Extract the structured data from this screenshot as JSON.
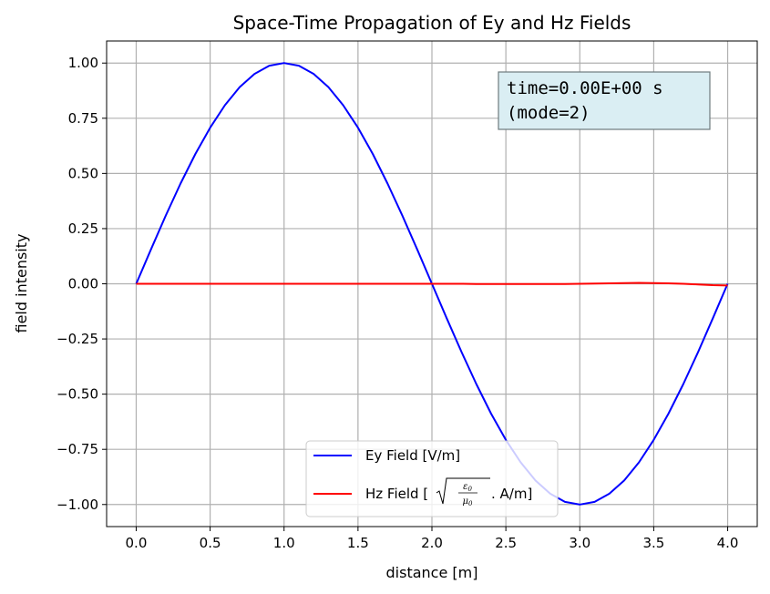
{
  "chart_data": {
    "type": "line",
    "title": "Space-Time Propagation of Ey and Hz Fields",
    "xlabel": "distance [m]",
    "ylabel": "field intensity",
    "xlim": [
      -0.2,
      4.2
    ],
    "ylim": [
      -1.1,
      1.1
    ],
    "xticks": [
      0.0,
      0.5,
      1.0,
      1.5,
      2.0,
      2.5,
      3.0,
      3.5,
      4.0
    ],
    "xtick_labels": [
      "0.0",
      "0.5",
      "1.0",
      "1.5",
      "2.0",
      "2.5",
      "3.0",
      "3.5",
      "4.0"
    ],
    "yticks": [
      1.0,
      0.75,
      0.5,
      0.25,
      0.0,
      -0.25,
      -0.5,
      -0.75,
      -1.0
    ],
    "ytick_labels": [
      "1.00",
      "0.75",
      "0.50",
      "0.25",
      "0.00",
      "−0.25",
      "−0.50",
      "−0.75",
      "−1.00"
    ],
    "grid": true,
    "legend_position": "bottom-center",
    "x": [
      0.0,
      0.1,
      0.2,
      0.3,
      0.4,
      0.5,
      0.6,
      0.7,
      0.8,
      0.9,
      1.0,
      1.1,
      1.2,
      1.3,
      1.4,
      1.5,
      1.6,
      1.7,
      1.8,
      1.9,
      2.0,
      2.1,
      2.2,
      2.3,
      2.4,
      2.5,
      2.6,
      2.7,
      2.8,
      2.9,
      3.0,
      3.1,
      3.2,
      3.3,
      3.4,
      3.5,
      3.6,
      3.7,
      3.8,
      3.9,
      4.0
    ],
    "series": [
      {
        "name": "Ey Field [V/m]",
        "color": "#0000ff",
        "values": [
          0.0,
          0.156,
          0.309,
          0.454,
          0.588,
          0.707,
          0.809,
          0.891,
          0.951,
          0.988,
          1.0,
          0.988,
          0.951,
          0.891,
          0.809,
          0.707,
          0.588,
          0.454,
          0.309,
          0.156,
          0.0,
          -0.156,
          -0.309,
          -0.454,
          -0.588,
          -0.707,
          -0.809,
          -0.891,
          -0.951,
          -0.988,
          -1.0,
          -0.988,
          -0.951,
          -0.891,
          -0.809,
          -0.707,
          -0.588,
          -0.454,
          -0.309,
          -0.156,
          0.0
        ]
      },
      {
        "name_prefix": "Hz Field [",
        "name_sqrt_numerator": "ε",
        "name_sqrt_numerator_sub": "0",
        "name_sqrt_denominator": "μ",
        "name_sqrt_denominator_sub": "0",
        "name_suffix": " . A/m]",
        "color": "#ff0000",
        "values": [
          0.0,
          0.0,
          0.0,
          0.0,
          0.0,
          0.0,
          0.0,
          0.0,
          0.0,
          0.0,
          0.0,
          0.0,
          0.0,
          0.0,
          0.0,
          0.0,
          0.0,
          0.0,
          0.0,
          0.0,
          0.0,
          0.0,
          0.0,
          -0.001,
          -0.001,
          -0.001,
          -0.001,
          -0.001,
          -0.001,
          -0.001,
          0.0,
          0.001,
          0.002,
          0.003,
          0.004,
          0.003,
          0.002,
          0.0,
          -0.003,
          -0.006,
          -0.008
        ]
      }
    ],
    "annotation": {
      "line1": "time=0.00E+00 s",
      "line2": "(mode=2)",
      "background": "#daeef3"
    }
  }
}
